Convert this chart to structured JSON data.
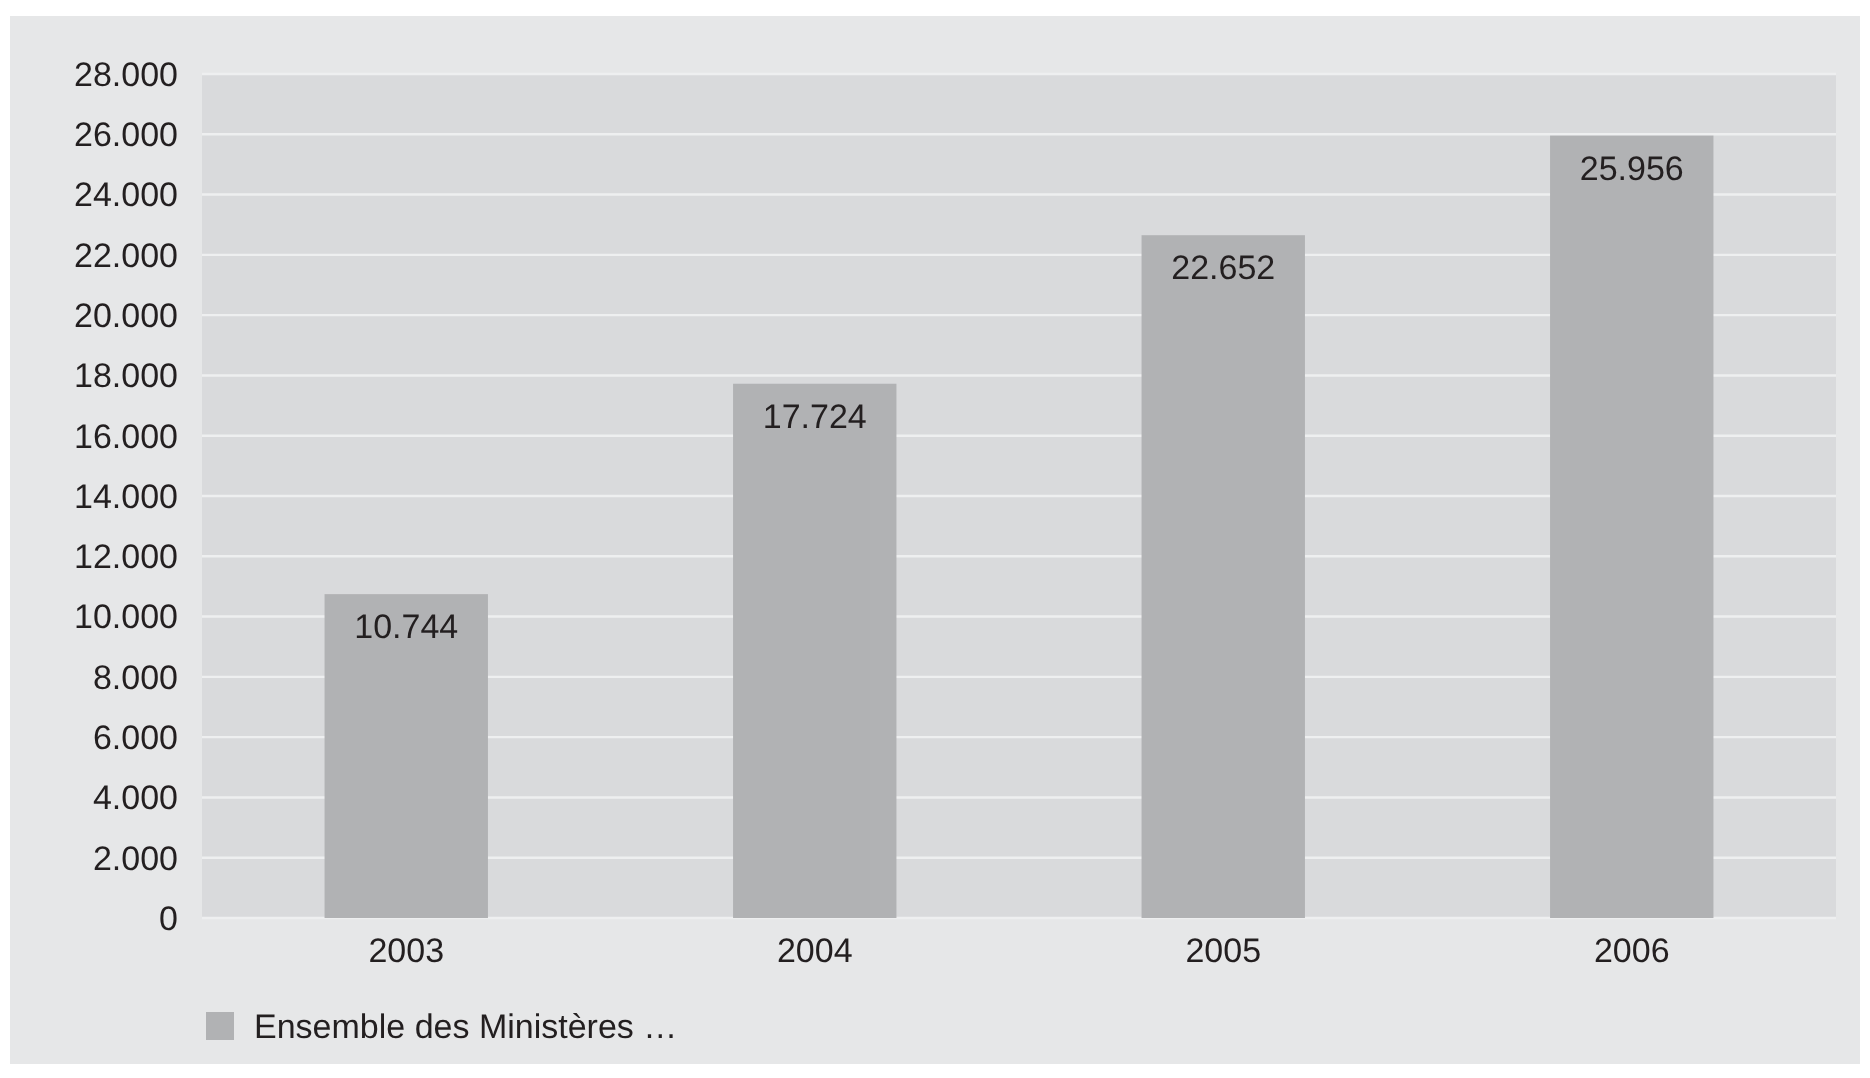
{
  "chart_data": {
    "type": "bar",
    "categories": [
      "2003",
      "2004",
      "2005",
      "2006"
    ],
    "series": [
      {
        "name": "Ensemble des Ministères …",
        "color": "#b1b2b4",
        "values": [
          10744,
          17724,
          22652,
          25956
        ],
        "value_labels": [
          "10.744",
          "17.724",
          "22.652",
          "25.956"
        ]
      }
    ],
    "ylim": [
      0,
      28000
    ],
    "yticks": [
      {
        "value": 0,
        "label": "0"
      },
      {
        "value": 2000,
        "label": "2.000"
      },
      {
        "value": 4000,
        "label": "4.000"
      },
      {
        "value": 6000,
        "label": "6.000"
      },
      {
        "value": 8000,
        "label": "8.000"
      },
      {
        "value": 10000,
        "label": "10.000"
      },
      {
        "value": 12000,
        "label": "12.000"
      },
      {
        "value": 14000,
        "label": "14.000"
      },
      {
        "value": 16000,
        "label": "16.000"
      },
      {
        "value": 18000,
        "label": "18.000"
      },
      {
        "value": 20000,
        "label": "20.000"
      },
      {
        "value": 22000,
        "label": "22.000"
      },
      {
        "value": 24000,
        "label": "24.000"
      },
      {
        "value": 26000,
        "label": "26.000"
      },
      {
        "value": 28000,
        "label": "28.000"
      }
    ],
    "grid": "y",
    "legend": "bottom left"
  }
}
